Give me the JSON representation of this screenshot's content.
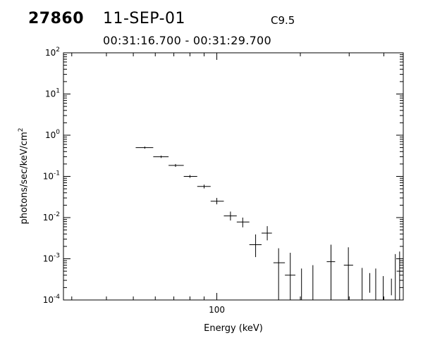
{
  "header": {
    "event_id": "27860",
    "date": "11-SEP-01",
    "goes_class": "C9.5",
    "time_range": "00:31:16.700 - 00:31:29.700"
  },
  "chart_data": {
    "type": "scatter",
    "title": "",
    "xlabel": "Energy (keV)",
    "ylabel": "photons/sec/keV/cm^2",
    "xscale": "log",
    "yscale": "log",
    "xlim": [
      28,
      470
    ],
    "ylim": [
      0.0001,
      100
    ],
    "x_tick_labels": [
      "100"
    ],
    "y_tick_labels": [
      "10^-4",
      "10^-3",
      "10^-2",
      "10^-1",
      "10^0",
      "10^1",
      "10^2"
    ],
    "grid": false,
    "series": [
      {
        "points": [
          {
            "x": 55,
            "x_lo": 51,
            "x_hi": 59,
            "y": 0.5,
            "y_lo": 0.47,
            "y_hi": 0.53
          },
          {
            "x": 63,
            "x_lo": 59,
            "x_hi": 67,
            "y": 0.3,
            "y_lo": 0.28,
            "y_hi": 0.32
          },
          {
            "x": 71,
            "x_lo": 67,
            "x_hi": 76,
            "y": 0.185,
            "y_lo": 0.17,
            "y_hi": 0.2
          },
          {
            "x": 80,
            "x_lo": 76,
            "x_hi": 85,
            "y": 0.1,
            "y_lo": 0.092,
            "y_hi": 0.108
          },
          {
            "x": 90,
            "x_lo": 85,
            "x_hi": 95,
            "y": 0.057,
            "y_lo": 0.051,
            "y_hi": 0.063
          },
          {
            "x": 100,
            "x_lo": 95,
            "x_hi": 106,
            "y": 0.025,
            "y_lo": 0.021,
            "y_hi": 0.03
          },
          {
            "x": 112,
            "x_lo": 106,
            "x_hi": 118,
            "y": 0.011,
            "y_lo": 0.0085,
            "y_hi": 0.014
          },
          {
            "x": 124,
            "x_lo": 118,
            "x_hi": 131,
            "y": 0.0078,
            "y_lo": 0.0058,
            "y_hi": 0.01
          },
          {
            "x": 138,
            "x_lo": 131,
            "x_hi": 145,
            "y": 0.0022,
            "y_lo": 0.0011,
            "y_hi": 0.0039
          },
          {
            "x": 152,
            "x_lo": 145,
            "x_hi": 158,
            "y": 0.0042,
            "y_lo": 0.0028,
            "y_hi": 0.0062
          },
          {
            "x": 167,
            "x_lo": 160,
            "x_hi": 176,
            "y": 0.0008,
            "y_lo": 0.0001,
            "y_hi": 0.0018
          },
          {
            "x": 184,
            "x_lo": 176,
            "x_hi": 192,
            "y": 0.0004,
            "y_lo": 0.0001,
            "y_hi": 0.0014
          },
          {
            "x": 202,
            "y_lo": 0.0001,
            "y_hi": 0.00058
          },
          {
            "x": 222,
            "y_lo": 0.0001,
            "y_hi": 0.0007
          },
          {
            "x": 258,
            "x_lo": 249,
            "x_hi": 267,
            "y": 0.00085,
            "y_lo": 0.0001,
            "y_hi": 0.0022
          },
          {
            "x": 298,
            "x_lo": 287,
            "x_hi": 310,
            "y": 0.0007,
            "y_lo": 0.0001,
            "y_hi": 0.0019
          },
          {
            "x": 334,
            "y_lo": 0.0001,
            "y_hi": 0.0006
          },
          {
            "x": 356,
            "y_lo": 0.00015,
            "y_hi": 0.00045
          },
          {
            "x": 374,
            "y_lo": 0.0001,
            "y_hi": 0.00058
          },
          {
            "x": 398,
            "y_lo": 0.0001,
            "y_hi": 0.00038
          },
          {
            "x": 426,
            "y_lo": 0.00013,
            "y_hi": 0.00033
          },
          {
            "x": 440,
            "y_lo": 0.0001,
            "y_hi": 0.0013
          },
          {
            "x": 456,
            "x_lo": 445,
            "x_hi": 466,
            "y": 0.0005,
            "y_lo": 0.0001,
            "y_hi": 0.0015
          }
        ]
      }
    ]
  }
}
